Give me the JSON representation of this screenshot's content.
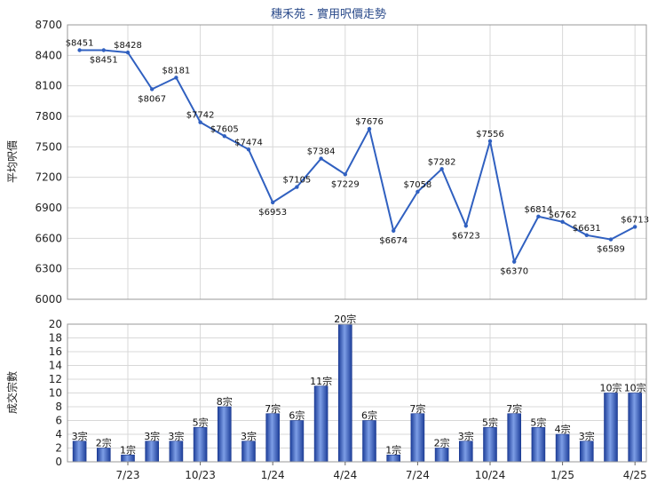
{
  "chart_data": [
    {
      "type": "line",
      "title": "穗禾苑 - 實用呎價走勢",
      "ylabel": "平均呎價",
      "ylim": [
        6000,
        8700
      ],
      "yticks": [
        6000,
        6300,
        6600,
        6900,
        7200,
        7500,
        7800,
        8100,
        8400,
        8700
      ],
      "x_tick_labels": [
        "7/23",
        "10/23",
        "1/24",
        "4/24",
        "7/24",
        "10/24",
        "1/25",
        "4/25"
      ],
      "values": [
        8451,
        8451,
        8428,
        8067,
        8181,
        7742,
        7605,
        7474,
        6953,
        7105,
        7384,
        7229,
        7676,
        6674,
        7058,
        7282,
        6723,
        7556,
        6370,
        6814,
        6762,
        6631,
        6589,
        6713
      ],
      "data_labels": [
        "$8451",
        "$8451",
        "$8428",
        "$8067",
        "$8181",
        "$7742",
        "$7605",
        "$7474",
        "$6953",
        "$7105",
        "$7384",
        "$7229",
        "$7676",
        "$6674",
        "$7058",
        "$7282",
        "$6723",
        "$7556",
        "$6370",
        "$6814",
        "$6762",
        "$6631",
        "$6589",
        "$6713"
      ],
      "color": "#3060c0",
      "grid": true
    },
    {
      "type": "bar",
      "ylabel": "成交宗數",
      "ylim": [
        0,
        20
      ],
      "yticks": [
        0,
        2,
        4,
        6,
        8,
        10,
        12,
        14,
        16,
        18,
        20
      ],
      "x_tick_labels": [
        "7/23",
        "10/23",
        "1/24",
        "4/24",
        "7/24",
        "10/24",
        "1/25",
        "4/25"
      ],
      "values": [
        3,
        2,
        1,
        3,
        3,
        5,
        8,
        3,
        7,
        6,
        11,
        20,
        6,
        1,
        7,
        2,
        3,
        5,
        7,
        5,
        4,
        3,
        10,
        10
      ],
      "data_labels": [
        "3宗",
        "2宗",
        "1宗",
        "3宗",
        "3宗",
        "5宗",
        "8宗",
        "3宗",
        "7宗",
        "6宗",
        "11宗",
        "20宗",
        "6宗",
        "1宗",
        "7宗",
        "2宗",
        "3宗",
        "5宗",
        "7宗",
        "5宗",
        "4宗",
        "3宗",
        "10宗",
        "10宗"
      ],
      "color": "#3a64c8",
      "grid": true
    }
  ]
}
